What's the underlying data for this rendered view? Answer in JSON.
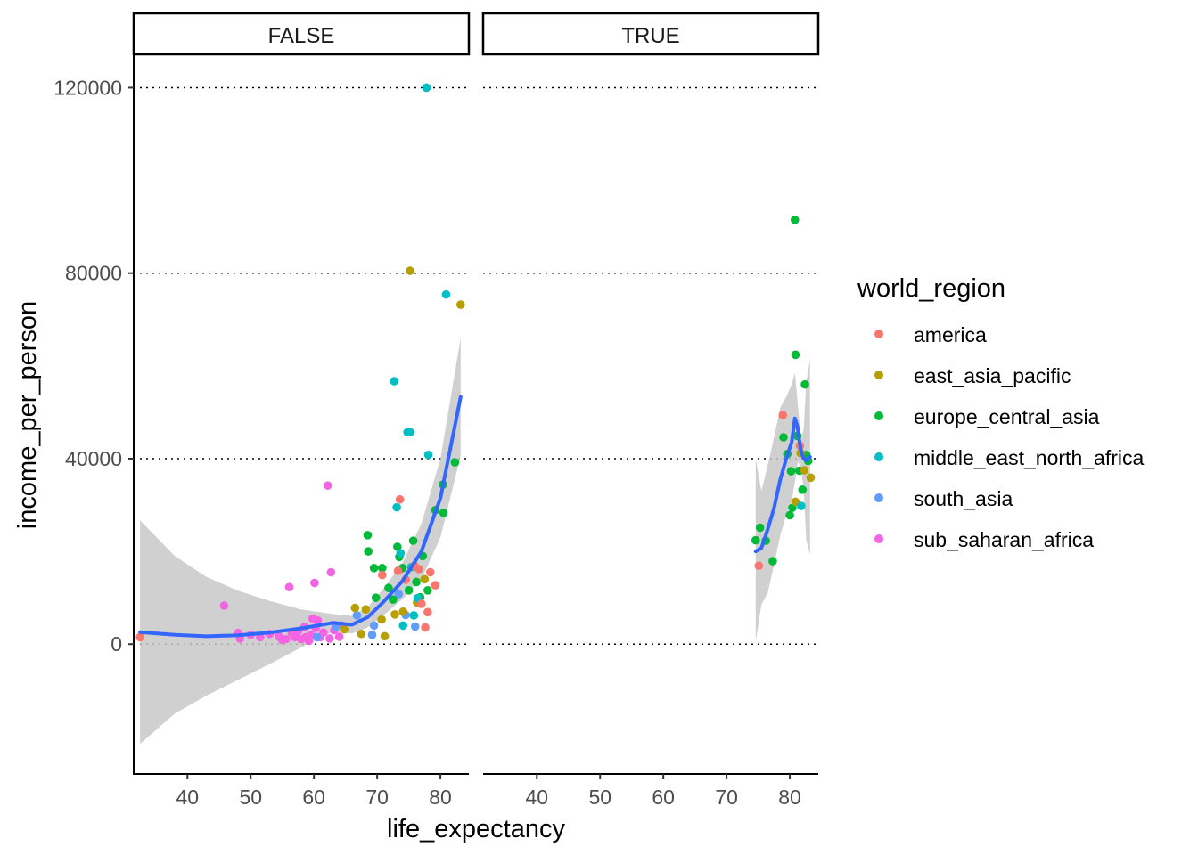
{
  "chart_data": {
    "type": "scatter",
    "facet_var_values": [
      "FALSE",
      "TRUE"
    ],
    "xlabel": "life_expectancy",
    "ylabel": "income_per_person",
    "x_ticks": [
      40,
      50,
      60,
      70,
      80
    ],
    "y_ticks": [
      0,
      40000,
      80000,
      120000
    ],
    "xlim": [
      31.5,
      84.5
    ],
    "ylim": [
      -28000,
      127000
    ],
    "grid": "horizontal dotted major",
    "legend": {
      "title": "world_region",
      "position": "right",
      "entries": [
        {
          "name": "america",
          "color": "#F8766D"
        },
        {
          "name": "east_asia_pacific",
          "color": "#B79F00"
        },
        {
          "name": "europe_central_asia",
          "color": "#00BA38"
        },
        {
          "name": "middle_east_north_africa",
          "color": "#00BFC4"
        },
        {
          "name": "south_asia",
          "color": "#619CFF"
        },
        {
          "name": "sub_saharan_africa",
          "color": "#F564E3"
        }
      ]
    },
    "smooth_color": "#3366FF",
    "band_color": "#C8C8C8",
    "panels": [
      {
        "label": "FALSE",
        "points": [
          {
            "x": 32.5,
            "y": 1500,
            "r": "america"
          },
          {
            "x": 45.8,
            "y": 8300,
            "r": "sub_saharan_africa"
          },
          {
            "x": 48,
            "y": 2400,
            "r": "sub_saharan_africa"
          },
          {
            "x": 48.3,
            "y": 1200,
            "r": "sub_saharan_africa"
          },
          {
            "x": 50,
            "y": 2000,
            "r": "sub_saharan_africa"
          },
          {
            "x": 51.5,
            "y": 1500,
            "r": "sub_saharan_africa"
          },
          {
            "x": 53,
            "y": 2200,
            "r": "sub_saharan_africa"
          },
          {
            "x": 54.5,
            "y": 1600,
            "r": "sub_saharan_africa"
          },
          {
            "x": 55,
            "y": 900,
            "r": "sub_saharan_africa"
          },
          {
            "x": 55.6,
            "y": 1100,
            "r": "sub_saharan_africa"
          },
          {
            "x": 56.1,
            "y": 12300,
            "r": "sub_saharan_africa"
          },
          {
            "x": 56.5,
            "y": 2500,
            "r": "sub_saharan_africa"
          },
          {
            "x": 57,
            "y": 1500,
            "r": "sub_saharan_africa"
          },
          {
            "x": 57.5,
            "y": 2800,
            "r": "sub_saharan_africa"
          },
          {
            "x": 58,
            "y": 1100,
            "r": "sub_saharan_africa"
          },
          {
            "x": 58.5,
            "y": 3700,
            "r": "sub_saharan_africa"
          },
          {
            "x": 58.7,
            "y": 1500,
            "r": "sub_saharan_africa"
          },
          {
            "x": 59.2,
            "y": 700,
            "r": "sub_saharan_africa"
          },
          {
            "x": 59.5,
            "y": 2000,
            "r": "sub_saharan_africa"
          },
          {
            "x": 59.8,
            "y": 5500,
            "r": "sub_saharan_africa"
          },
          {
            "x": 60.1,
            "y": 13200,
            "r": "sub_saharan_africa"
          },
          {
            "x": 60.3,
            "y": 3500,
            "r": "sub_saharan_africa"
          },
          {
            "x": 60.6,
            "y": 5100,
            "r": "sub_saharan_africa"
          },
          {
            "x": 61,
            "y": 1500,
            "r": "sub_saharan_africa"
          },
          {
            "x": 61.5,
            "y": 2500,
            "r": "sub_saharan_africa"
          },
          {
            "x": 62.2,
            "y": 34200,
            "r": "sub_saharan_africa"
          },
          {
            "x": 62.7,
            "y": 15500,
            "r": "sub_saharan_africa"
          },
          {
            "x": 62.5,
            "y": 1200,
            "r": "sub_saharan_africa"
          },
          {
            "x": 63.2,
            "y": 3000,
            "r": "sub_saharan_africa"
          },
          {
            "x": 64,
            "y": 1600,
            "r": "sub_saharan_africa"
          },
          {
            "x": 64.4,
            "y": 4000,
            "r": "sub_saharan_africa"
          },
          {
            "x": 60.5,
            "y": 1500,
            "r": "south_asia"
          },
          {
            "x": 63.5,
            "y": 3800,
            "r": "south_asia"
          },
          {
            "x": 66.8,
            "y": 6200,
            "r": "south_asia"
          },
          {
            "x": 69.2,
            "y": 2000,
            "r": "south_asia"
          },
          {
            "x": 69.5,
            "y": 4000,
            "r": "south_asia"
          },
          {
            "x": 73.4,
            "y": 10800,
            "r": "south_asia"
          },
          {
            "x": 74.5,
            "y": 6300,
            "r": "south_asia"
          },
          {
            "x": 76,
            "y": 3800,
            "r": "south_asia"
          },
          {
            "x": 64.8,
            "y": 3200,
            "r": "east_asia_pacific"
          },
          {
            "x": 66.5,
            "y": 7800,
            "r": "east_asia_pacific"
          },
          {
            "x": 67.5,
            "y": 2200,
            "r": "east_asia_pacific"
          },
          {
            "x": 68.2,
            "y": 7500,
            "r": "east_asia_pacific"
          },
          {
            "x": 70.7,
            "y": 5300,
            "r": "east_asia_pacific"
          },
          {
            "x": 71.2,
            "y": 1700,
            "r": "east_asia_pacific"
          },
          {
            "x": 72.8,
            "y": 6400,
            "r": "east_asia_pacific"
          },
          {
            "x": 74.1,
            "y": 7000,
            "r": "east_asia_pacific"
          },
          {
            "x": 75.2,
            "y": 80500,
            "r": "east_asia_pacific"
          },
          {
            "x": 76.3,
            "y": 9000,
            "r": "east_asia_pacific"
          },
          {
            "x": 77.5,
            "y": 14000,
            "r": "east_asia_pacific"
          },
          {
            "x": 83.2,
            "y": 73200,
            "r": "east_asia_pacific"
          },
          {
            "x": 68.5,
            "y": 23500,
            "r": "europe_central_asia"
          },
          {
            "x": 68.6,
            "y": 20000,
            "r": "europe_central_asia"
          },
          {
            "x": 69.5,
            "y": 16400,
            "r": "europe_central_asia"
          },
          {
            "x": 69.8,
            "y": 10000,
            "r": "europe_central_asia"
          },
          {
            "x": 70.8,
            "y": 16400,
            "r": "europe_central_asia"
          },
          {
            "x": 71.8,
            "y": 12100,
            "r": "europe_central_asia"
          },
          {
            "x": 72.5,
            "y": 9600,
            "r": "europe_central_asia"
          },
          {
            "x": 73.2,
            "y": 21000,
            "r": "europe_central_asia"
          },
          {
            "x": 73.5,
            "y": 18800,
            "r": "europe_central_asia"
          },
          {
            "x": 74,
            "y": 16400,
            "r": "europe_central_asia"
          },
          {
            "x": 75,
            "y": 11600,
            "r": "europe_central_asia"
          },
          {
            "x": 75.7,
            "y": 22300,
            "r": "europe_central_asia"
          },
          {
            "x": 76.2,
            "y": 13400,
            "r": "europe_central_asia"
          },
          {
            "x": 76.8,
            "y": 10100,
            "r": "europe_central_asia"
          },
          {
            "x": 77.2,
            "y": 19000,
            "r": "europe_central_asia"
          },
          {
            "x": 78,
            "y": 11600,
            "r": "europe_central_asia"
          },
          {
            "x": 79.2,
            "y": 28900,
            "r": "europe_central_asia"
          },
          {
            "x": 80.4,
            "y": 34400,
            "r": "europe_central_asia"
          },
          {
            "x": 80.5,
            "y": 28300,
            "r": "europe_central_asia"
          },
          {
            "x": 82.3,
            "y": 39200,
            "r": "europe_central_asia"
          },
          {
            "x": 72.7,
            "y": 56700,
            "r": "middle_east_north_africa"
          },
          {
            "x": 73.1,
            "y": 29500,
            "r": "middle_east_north_africa"
          },
          {
            "x": 73.7,
            "y": 19600,
            "r": "middle_east_north_africa"
          },
          {
            "x": 74.1,
            "y": 4000,
            "r": "middle_east_north_africa"
          },
          {
            "x": 74.8,
            "y": 45700,
            "r": "middle_east_north_africa"
          },
          {
            "x": 75.2,
            "y": 45700,
            "r": "middle_east_north_africa"
          },
          {
            "x": 75.4,
            "y": 16600,
            "r": "middle_east_north_africa"
          },
          {
            "x": 75.8,
            "y": 6200,
            "r": "middle_east_north_africa"
          },
          {
            "x": 76.4,
            "y": 9900,
            "r": "middle_east_north_africa"
          },
          {
            "x": 77.8,
            "y": 120000,
            "r": "middle_east_north_africa"
          },
          {
            "x": 78.1,
            "y": 40800,
            "r": "middle_east_north_africa"
          },
          {
            "x": 80.9,
            "y": 75400,
            "r": "middle_east_north_africa"
          },
          {
            "x": 70.8,
            "y": 14900,
            "r": "america"
          },
          {
            "x": 73.3,
            "y": 15800,
            "r": "america"
          },
          {
            "x": 73.6,
            "y": 31200,
            "r": "america"
          },
          {
            "x": 74.5,
            "y": 13900,
            "r": "america"
          },
          {
            "x": 75.9,
            "y": 16900,
            "r": "america"
          },
          {
            "x": 76.6,
            "y": 16200,
            "r": "america"
          },
          {
            "x": 77,
            "y": 8700,
            "r": "america"
          },
          {
            "x": 77.6,
            "y": 3600,
            "r": "america"
          },
          {
            "x": 78,
            "y": 6900,
            "r": "america"
          },
          {
            "x": 78.4,
            "y": 15500,
            "r": "america"
          },
          {
            "x": 79.2,
            "y": 12700,
            "r": "america"
          }
        ],
        "smooth": [
          [
            32.5,
            2600
          ],
          [
            38,
            2000
          ],
          [
            43,
            1700
          ],
          [
            48,
            1900
          ],
          [
            53,
            2500
          ],
          [
            58,
            3400
          ],
          [
            63,
            4600
          ],
          [
            66,
            4200
          ],
          [
            68.5,
            5800
          ],
          [
            71,
            9100
          ],
          [
            74,
            13600
          ],
          [
            77,
            20000
          ],
          [
            80,
            31500
          ],
          [
            83.2,
            53300
          ]
        ],
        "band_upper": [
          [
            32.5,
            26700
          ],
          [
            38,
            19000
          ],
          [
            43,
            14500
          ],
          [
            48,
            11500
          ],
          [
            53,
            9300
          ],
          [
            58,
            7500
          ],
          [
            63,
            6500
          ],
          [
            66,
            6100
          ],
          [
            68.5,
            8000
          ],
          [
            71,
            12000
          ],
          [
            74,
            17500
          ],
          [
            77,
            26000
          ],
          [
            80,
            40000
          ],
          [
            83.2,
            66000
          ]
        ],
        "band_lower": [
          [
            32.5,
            -21500
          ],
          [
            38,
            -15000
          ],
          [
            43,
            -11100
          ],
          [
            48,
            -7700
          ],
          [
            53,
            -4300
          ],
          [
            58,
            -700
          ],
          [
            63,
            2700
          ],
          [
            66,
            2300
          ],
          [
            68.5,
            3600
          ],
          [
            71,
            6200
          ],
          [
            74,
            9700
          ],
          [
            77,
            14000
          ],
          [
            80,
            23000
          ],
          [
            83.2,
            40600
          ]
        ]
      },
      {
        "label": "TRUE",
        "points": [
          {
            "x": 74.6,
            "y": 22400,
            "r": "europe_central_asia"
          },
          {
            "x": 75.3,
            "y": 25100,
            "r": "europe_central_asia"
          },
          {
            "x": 76.2,
            "y": 22300,
            "r": "europe_central_asia"
          },
          {
            "x": 77.3,
            "y": 17900,
            "r": "europe_central_asia"
          },
          {
            "x": 79,
            "y": 44600,
            "r": "europe_central_asia"
          },
          {
            "x": 79.6,
            "y": 41000,
            "r": "europe_central_asia"
          },
          {
            "x": 80,
            "y": 27800,
            "r": "europe_central_asia"
          },
          {
            "x": 80.2,
            "y": 37300,
            "r": "europe_central_asia"
          },
          {
            "x": 80.4,
            "y": 29400,
            "r": "europe_central_asia"
          },
          {
            "x": 80.8,
            "y": 91500,
            "r": "europe_central_asia"
          },
          {
            "x": 80.9,
            "y": 62400,
            "r": "europe_central_asia"
          },
          {
            "x": 81.2,
            "y": 44900,
            "r": "europe_central_asia"
          },
          {
            "x": 81.5,
            "y": 37400,
            "r": "europe_central_asia"
          },
          {
            "x": 82,
            "y": 33300,
            "r": "europe_central_asia"
          },
          {
            "x": 82.4,
            "y": 56000,
            "r": "europe_central_asia"
          },
          {
            "x": 82.6,
            "y": 40800,
            "r": "europe_central_asia"
          },
          {
            "x": 82.9,
            "y": 39500,
            "r": "europe_central_asia"
          },
          {
            "x": 75.1,
            "y": 16900,
            "r": "america"
          },
          {
            "x": 78.9,
            "y": 49400,
            "r": "america"
          },
          {
            "x": 81.6,
            "y": 42800,
            "r": "america"
          },
          {
            "x": 80.9,
            "y": 30700,
            "r": "east_asia_pacific"
          },
          {
            "x": 81.7,
            "y": 41200,
            "r": "east_asia_pacific"
          },
          {
            "x": 82.3,
            "y": 37500,
            "r": "east_asia_pacific"
          },
          {
            "x": 83.3,
            "y": 35900,
            "r": "east_asia_pacific"
          },
          {
            "x": 81.8,
            "y": 29800,
            "r": "middle_east_north_africa"
          }
        ],
        "smooth": [
          [
            74.6,
            20000
          ],
          [
            75.5,
            20700
          ],
          [
            76.5,
            24700
          ],
          [
            77.5,
            29300
          ],
          [
            78.5,
            35500
          ],
          [
            79.5,
            40300
          ],
          [
            80.3,
            43600
          ],
          [
            80.8,
            48700
          ],
          [
            81.2,
            47000
          ],
          [
            81.5,
            44000
          ],
          [
            81.8,
            41500
          ],
          [
            82.2,
            40000
          ],
          [
            82.6,
            39600
          ],
          [
            83.2,
            40400
          ]
        ],
        "band_upper": [
          [
            74.6,
            40000
          ],
          [
            75.5,
            33000
          ],
          [
            76.5,
            38500
          ],
          [
            77.5,
            44500
          ],
          [
            78.5,
            51000
          ],
          [
            79.5,
            53500
          ],
          [
            80.3,
            56000
          ],
          [
            80.8,
            58500
          ],
          [
            81.3,
            51200
          ],
          [
            81.8,
            44000
          ],
          [
            82.2,
            46500
          ],
          [
            82.6,
            56500
          ],
          [
            83.2,
            61500
          ]
        ],
        "band_lower": [
          [
            74.6,
            500
          ],
          [
            75.5,
            8500
          ],
          [
            76.5,
            11000
          ],
          [
            77.5,
            17000
          ],
          [
            78.5,
            23500
          ],
          [
            79.5,
            28000
          ],
          [
            80.3,
            31000
          ],
          [
            80.8,
            35000
          ],
          [
            81.3,
            39500
          ],
          [
            81.8,
            37500
          ],
          [
            82.2,
            33500
          ],
          [
            82.6,
            22500
          ],
          [
            83.2,
            19300
          ]
        ]
      }
    ]
  }
}
